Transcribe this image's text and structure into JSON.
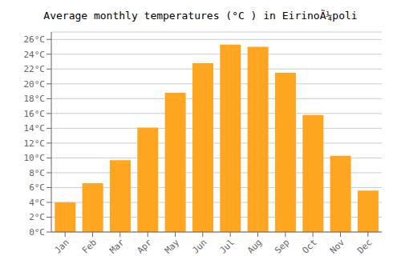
{
  "chart_data": {
    "type": "bar",
    "title": "Average monthly temperatures (°C ) in EirinoÃ¼poli",
    "categories": [
      "Jan",
      "Feb",
      "Mar",
      "Apr",
      "May",
      "Jun",
      "Jul",
      "Aug",
      "Sep",
      "Oct",
      "Nov",
      "Dec"
    ],
    "values": [
      4.0,
      6.6,
      9.7,
      14.1,
      18.8,
      22.8,
      25.3,
      25.0,
      21.5,
      15.8,
      10.3,
      5.6
    ],
    "color": "#FFA520",
    "ylim": [
      0,
      27
    ],
    "yticks": [
      {
        "value": 0,
        "label": "0°C"
      },
      {
        "value": 2,
        "label": "2°C"
      },
      {
        "value": 4,
        "label": "4°C"
      },
      {
        "value": 6,
        "label": "6°C"
      },
      {
        "value": 8,
        "label": "8°C"
      },
      {
        "value": 10,
        "label": "10°C"
      },
      {
        "value": 12,
        "label": "12°C"
      },
      {
        "value": 14,
        "label": "14°C"
      },
      {
        "value": 16,
        "label": "16°C"
      },
      {
        "value": 18,
        "label": "18°C"
      },
      {
        "value": 20,
        "label": "20°C"
      },
      {
        "value": 22,
        "label": "22°C"
      },
      {
        "value": 24,
        "label": "24°C"
      },
      {
        "value": 26,
        "label": "26°C"
      }
    ],
    "grid": true
  }
}
